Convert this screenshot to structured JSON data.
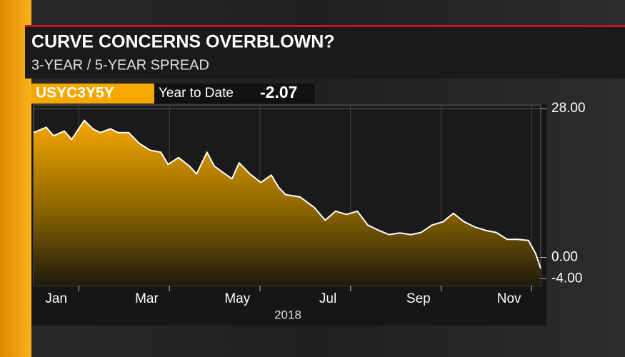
{
  "chart_data": {
    "type": "area",
    "title": "CURVE CONCERNS OVERBLOWN?",
    "subtitle": "3-YEAR / 5-YEAR SPREAD",
    "ticker": "USYC3Y5Y",
    "period": "Year to Date",
    "change": -2.07,
    "xlabel": "2018",
    "x": [
      0,
      0.28,
      0.44,
      0.68,
      0.84,
      1.12,
      1.31,
      1.47,
      1.7,
      1.86,
      2.1,
      2.33,
      2.57,
      2.81,
      2.97,
      3.2,
      3.44,
      3.6,
      3.83,
      3.99,
      4.15,
      4.38,
      4.54,
      4.78,
      5.02,
      5.25,
      5.41,
      5.57,
      5.88,
      6.2,
      6.44,
      6.67,
      6.91,
      7.15,
      7.38,
      7.62,
      7.85,
      8.09,
      8.33,
      8.56,
      8.8,
      9.04,
      9.27,
      9.51,
      9.75,
      9.98,
      10.22,
      10.46,
      10.69,
      10.93,
      11.09,
      11.2
    ],
    "values": [
      23.5,
      24.5,
      22.9,
      23.8,
      22.2,
      25.8,
      24.2,
      23.5,
      24.2,
      23.5,
      23.5,
      21.5,
      20.2,
      19.8,
      17.5,
      18.8,
      17.2,
      15.7,
      19.8,
      17.2,
      16.2,
      14.8,
      17.8,
      15.7,
      14.1,
      15.5,
      13.2,
      11.8,
      11.4,
      9.4,
      7.0,
      8.7,
      8.1,
      8.7,
      6.1,
      5.1,
      4.3,
      4.6,
      4.3,
      4.7,
      6.1,
      6.7,
      8.3,
      6.7,
      5.7,
      5.1,
      4.7,
      3.4,
      3.4,
      3.2,
      0.7,
      -2.07
    ],
    "color": "#f5a800",
    "xlim": [
      0,
      11.2
    ],
    "xticks": [
      {
        "value": 0.5,
        "label": "Jan"
      },
      {
        "value": 2.5,
        "label": "Mar"
      },
      {
        "value": 4.5,
        "label": "May"
      },
      {
        "value": 6.5,
        "label": "Jul"
      },
      {
        "value": 8.5,
        "label": "Sep"
      },
      {
        "value": 10.5,
        "label": "Nov"
      }
    ],
    "xgrid": [
      1,
      3,
      5,
      7,
      9,
      11
    ],
    "ylim": [
      -5.3,
      28.7
    ],
    "yticks": [
      {
        "value": 28,
        "label": "28.00"
      },
      {
        "value": 0,
        "label": "0.00"
      },
      {
        "value": -4,
        "label": "-4.00"
      }
    ],
    "grid": true
  }
}
